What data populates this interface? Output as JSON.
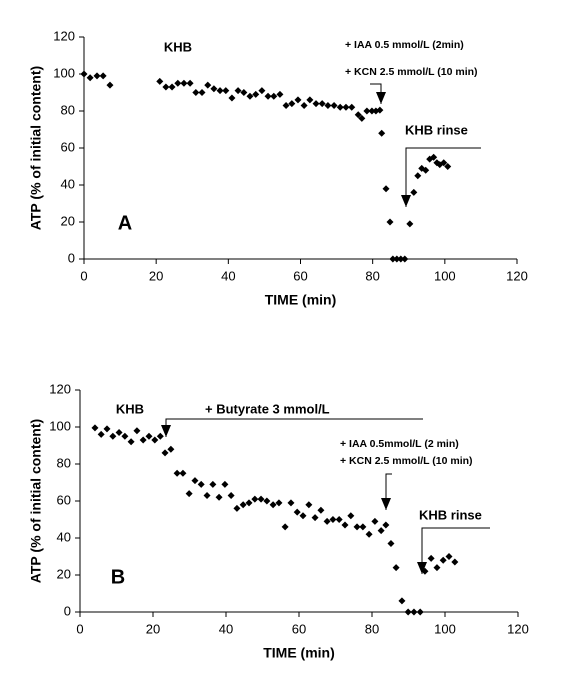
{
  "chart_data": [
    {
      "type": "scatter",
      "color": "#000000",
      "x_label": "TIME (min)",
      "y_label": "ATP (% of initial content)",
      "xlim": [
        0,
        120
      ],
      "xticks": [
        0,
        20,
        40,
        60,
        80,
        100,
        120
      ],
      "ylim": [
        0,
        120
      ],
      "yticks": [
        0,
        20,
        40,
        60,
        80,
        100,
        120
      ],
      "panel_label": "A",
      "annotations": [
        "KHB",
        "+ IAA 0.5 mmol/L (2min)",
        "+ KCN 2.5 mmol/L (10 min)",
        "KHB rinse"
      ],
      "x": [
        0,
        1.7,
        3.6,
        5.3,
        7.2,
        21,
        22.7,
        24.4,
        26,
        27.7,
        29.4,
        31,
        32.7,
        34.3,
        36,
        37.7,
        39.3,
        41,
        42.7,
        44.3,
        46,
        47.6,
        49.3,
        51,
        52.6,
        54.3,
        56,
        57.6,
        59.3,
        61,
        62.6,
        64.3,
        66,
        67.6,
        69.3,
        71,
        72.6,
        74.2,
        76,
        77,
        78.4,
        79.8,
        80.9,
        82,
        82.5,
        83.7,
        84.8,
        85.6,
        86.7,
        87.8,
        88.9,
        90.3,
        91.4,
        92.5,
        93.6,
        94.7,
        95.8,
        96.9,
        97.8,
        98.6,
        99.7,
        100.8
      ],
      "values": [
        100,
        98,
        99,
        99,
        94,
        96,
        93,
        93,
        95,
        95,
        95,
        90,
        90,
        94,
        92,
        91,
        91,
        87,
        91,
        90,
        88,
        89,
        91,
        88,
        88,
        89,
        83,
        84,
        86,
        83,
        86,
        84,
        84,
        83,
        83,
        82,
        82,
        82,
        78,
        76,
        80,
        80,
        80,
        80.5,
        68,
        38,
        20,
        0,
        0,
        0,
        0,
        19,
        36,
        45,
        49,
        48,
        54,
        55,
        52,
        51,
        52,
        50
      ]
    },
    {
      "type": "scatter",
      "color": "#000000",
      "x_label": "TIME (min)",
      "y_label": "ATP (% of initial content)",
      "xlim": [
        0,
        120
      ],
      "xticks": [
        0,
        20,
        40,
        60,
        80,
        100,
        120
      ],
      "ylim": [
        0,
        120
      ],
      "yticks": [
        0,
        20,
        40,
        60,
        80,
        100,
        120
      ],
      "panel_label": "B",
      "annotations": [
        "KHB",
        "+ Butyrate 3 mmol/L",
        "+ IAA 0.5mmol/L (2 min)",
        "+ KCN 2.5 mmol/L (10 min)",
        "KHB rinse"
      ],
      "x": [
        4.1,
        5.8,
        7.4,
        9,
        10.7,
        12.3,
        14,
        15.6,
        17.3,
        18.9,
        20.5,
        22,
        23.3,
        24.9,
        26.6,
        28.2,
        29.9,
        31.5,
        33.2,
        34.8,
        36.4,
        38.1,
        39.7,
        41.4,
        43,
        44.7,
        46.3,
        47.9,
        49.6,
        51.2,
        52.9,
        54.5,
        56.2,
        57.8,
        59.5,
        61.1,
        62.7,
        64.4,
        66,
        67.7,
        69.3,
        71,
        72.6,
        74.2,
        75.9,
        77.5,
        79.2,
        80.8,
        82.5,
        83.8,
        85.2,
        86.6,
        88.2,
        89.9,
        91.5,
        93.2,
        94.5,
        96.2,
        97.8,
        99.5,
        101.1,
        102.7
      ],
      "values": [
        99.5,
        96,
        99,
        95,
        97,
        95,
        92,
        98,
        93,
        95,
        93,
        95,
        86,
        88,
        75,
        75,
        64,
        71,
        69,
        63,
        69,
        62,
        69,
        63,
        56,
        58,
        59,
        61,
        61,
        60,
        58,
        59,
        46,
        59,
        54,
        52,
        58,
        51,
        55,
        49,
        50,
        50,
        47,
        52,
        46,
        46,
        42,
        49,
        44,
        47,
        37,
        24,
        6,
        0,
        0,
        0,
        22,
        29,
        24,
        28,
        30,
        27
      ]
    }
  ]
}
